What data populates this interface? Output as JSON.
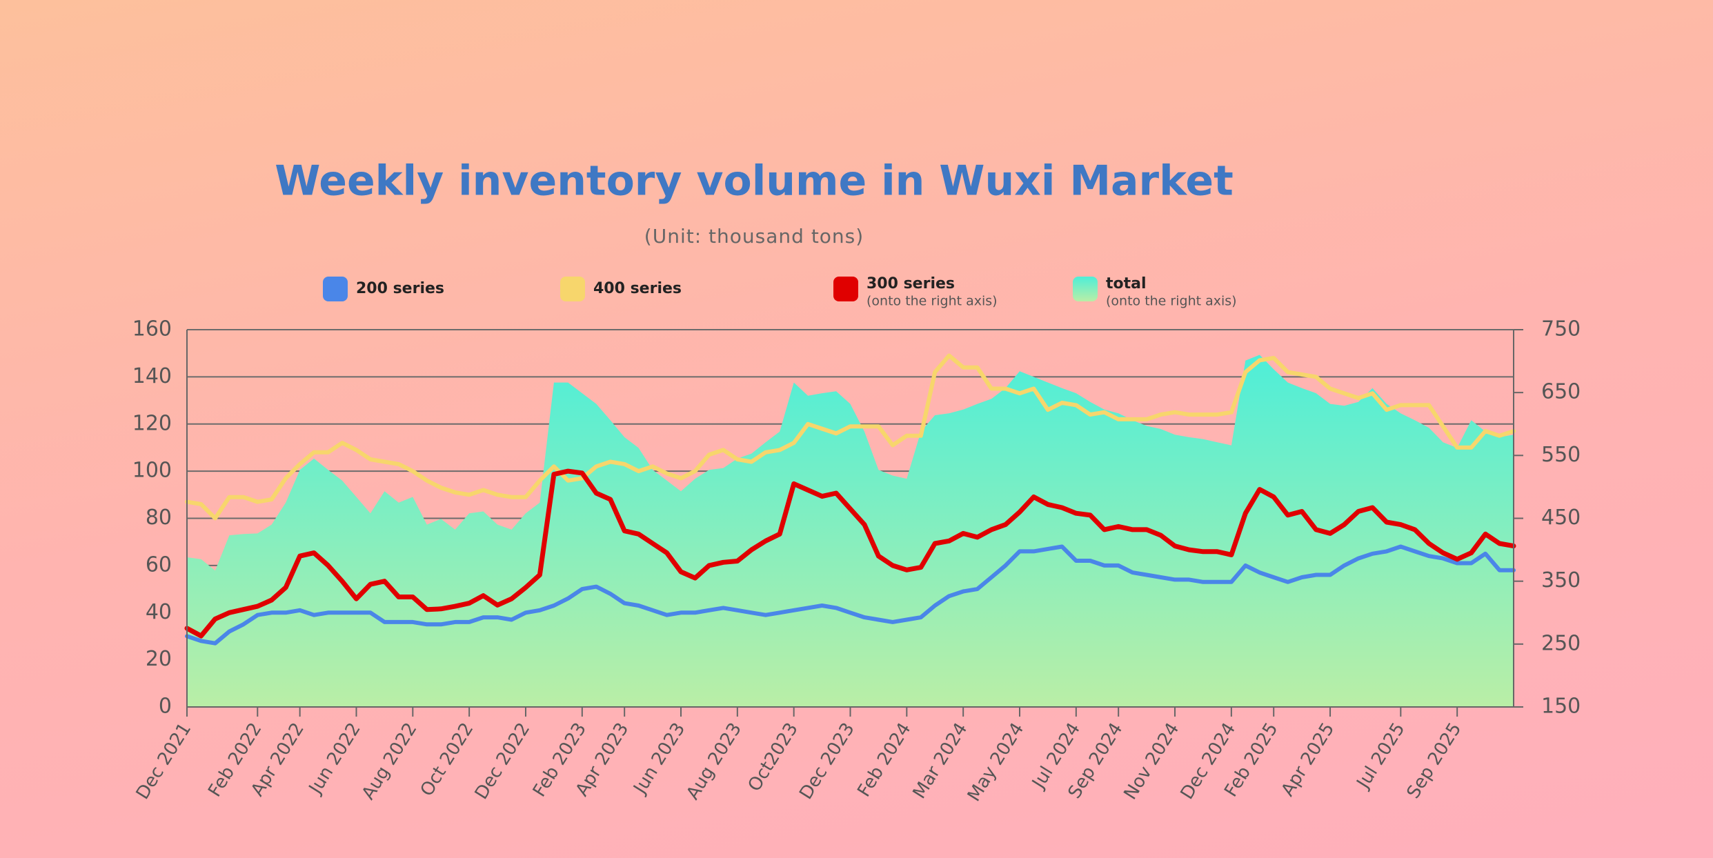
{
  "chart_data": {
    "type": "line",
    "title": "Weekly inventory volume in Wuxi Market",
    "subtitle": "(Unit: thousand tons)",
    "categories": [
      "Dec 2021",
      null,
      null,
      null,
      null,
      "Feb 2022",
      null,
      null,
      "Apr 2022",
      null,
      null,
      null,
      "Jun 2022",
      null,
      null,
      null,
      "Aug 2022",
      null,
      null,
      null,
      "Oct 2022",
      null,
      null,
      null,
      "Dec 2022",
      null,
      null,
      null,
      "Feb 2023",
      null,
      null,
      "Apr 2023",
      null,
      null,
      null,
      "Jun 2023",
      null,
      null,
      null,
      "Aug 2023",
      null,
      null,
      null,
      "Oct2023",
      null,
      null,
      null,
      "Dec 2023",
      null,
      null,
      null,
      "Feb 2024",
      null,
      null,
      null,
      "Mar 2024",
      null,
      null,
      null,
      "May 2024",
      null,
      null,
      null,
      "Jul 2024",
      null,
      null,
      "Sep 2024",
      null,
      null,
      null,
      "Nov 2024",
      null,
      null,
      null,
      "Dec 2024",
      null,
      null,
      "Feb 2025",
      null,
      null,
      null,
      "Apr 2025",
      null,
      null,
      null,
      null,
      "Jul 2025",
      null,
      null,
      null,
      "Sep 2025",
      null,
      null,
      null,
      null
    ],
    "series": [
      {
        "name": "total",
        "note": "(onto the right axis)",
        "kind": "area",
        "axis": "y2",
        "color": "#4eeed8",
        "values": [
          388,
          385,
          367,
          423,
          425,
          426,
          440,
          475,
          527,
          545,
          527,
          510,
          484,
          458,
          493,
          475,
          484,
          440,
          449,
          432,
          458,
          461,
          440,
          432,
          458,
          475,
          666,
          666,
          649,
          632,
          606,
          579,
          562,
          527,
          510,
          493,
          513,
          527,
          530,
          545,
          553,
          571,
          588,
          666,
          645,
          649,
          652,
          632,
          588,
          527,
          518,
          513,
          588,
          614,
          617,
          623,
          632,
          640,
          657,
          684,
          675,
          666,
          657,
          649,
          635,
          623,
          617,
          606,
          597,
          592,
          583,
          579,
          576,
          571,
          566,
          701,
          710,
          687,
          666,
          657,
          649,
          632,
          629,
          635,
          657,
          632,
          617,
          606,
          594,
          571,
          562,
          606,
          588,
          579,
          583
        ]
      },
      {
        "name": "200 series",
        "color": "#4a86e8",
        "values": [
          30,
          28,
          27,
          32,
          35,
          39,
          40,
          40,
          41,
          39,
          40,
          40,
          40,
          40,
          36,
          36,
          36,
          35,
          35,
          36,
          36,
          38,
          38,
          37,
          40,
          41,
          43,
          46,
          50,
          51,
          48,
          44,
          43,
          41,
          39,
          40,
          40,
          41,
          42,
          41,
          40,
          39,
          40,
          41,
          42,
          43,
          42,
          40,
          38,
          37,
          36,
          37,
          38,
          43,
          47,
          49,
          50,
          55,
          60,
          66,
          66,
          67,
          68,
          62,
          62,
          60,
          60,
          57,
          56,
          55,
          54,
          54,
          53,
          53,
          53,
          60,
          57,
          55,
          53,
          55,
          56,
          56,
          60,
          63,
          65,
          66,
          68,
          66,
          64,
          63,
          61,
          61,
          65,
          58,
          58
        ]
      },
      {
        "name": "400 series",
        "color": "#f7d66c",
        "values": [
          87,
          86,
          80,
          89,
          89,
          87,
          88,
          97,
          103,
          108,
          108,
          112,
          109,
          105,
          104,
          103,
          100,
          96,
          93,
          91,
          90,
          92,
          90,
          89,
          89,
          96,
          102,
          96,
          97,
          102,
          104,
          103,
          100,
          102,
          99,
          97,
          100,
          107,
          109,
          105,
          104,
          108,
          109,
          112,
          120,
          118,
          116,
          119,
          119,
          119,
          111,
          115,
          115,
          142,
          149,
          144,
          144,
          135,
          135,
          133,
          135,
          126,
          129,
          128,
          124,
          125,
          122,
          122,
          122,
          124,
          125,
          124,
          124,
          124,
          125,
          142,
          147,
          148,
          142,
          141,
          140,
          135,
          133,
          131,
          133,
          126,
          128,
          128,
          128,
          119,
          110,
          110,
          117,
          115,
          117
        ]
      },
      {
        "name": "300 series",
        "note": "(onto the right axis)",
        "axis": "y2",
        "color": "#e00000",
        "values": [
          275,
          263,
          290,
          300,
          305,
          310,
          320,
          340,
          390,
          395,
          375,
          350,
          322,
          345,
          350,
          325,
          325,
          305,
          306,
          310,
          315,
          327,
          312,
          322,
          340,
          360,
          520,
          525,
          522,
          490,
          480,
          430,
          425,
          410,
          395,
          365,
          355,
          375,
          380,
          382,
          400,
          414,
          425,
          505,
          495,
          485,
          490,
          465,
          440,
          390,
          375,
          368,
          372,
          410,
          414,
          426,
          420,
          432,
          440,
          460,
          484,
          472,
          467,
          458,
          455,
          432,
          437,
          432,
          432,
          423,
          406,
          400,
          397,
          397,
          392,
          458,
          496,
          484,
          455,
          461,
          432,
          426,
          440,
          461,
          467,
          444,
          440,
          432,
          410,
          395,
          385,
          395,
          425,
          410,
          406
        ]
      }
    ],
    "legend_order": [
      1,
      2,
      3,
      0
    ],
    "ylim": [
      0,
      160
    ],
    "yticks": [
      0,
      20,
      40,
      60,
      80,
      100,
      120,
      140,
      160
    ],
    "y2lim": [
      150,
      750
    ],
    "y2ticks": [
      150,
      250,
      350,
      450,
      550,
      650,
      750
    ],
    "grid": true
  }
}
